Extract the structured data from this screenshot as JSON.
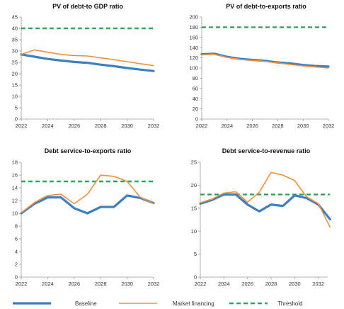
{
  "colors": {
    "baseline": "#3d7fc0",
    "market": "#f0913a",
    "threshold": "#2ea65a",
    "axis": "#9a9a9a"
  },
  "legend": [
    {
      "label": "Baseline",
      "series": "baseline"
    },
    {
      "label": "Market financing",
      "series": "market"
    },
    {
      "label": "Threshold",
      "series": "threshold"
    }
  ],
  "chart_data": [
    {
      "type": "line",
      "title": "PV of debt-to GDP ratio",
      "x": [
        2022,
        2023,
        2024,
        2025,
        2026,
        2027,
        2028,
        2029,
        2030,
        2031,
        2032
      ],
      "xticks": [
        "2022",
        "2024",
        "2026",
        "2028",
        "2030",
        "2032"
      ],
      "ylim": [
        0,
        45
      ],
      "yticks": [
        "0",
        "5",
        "10",
        "15",
        "20",
        "25",
        "30",
        "35",
        "40",
        "45"
      ],
      "series": [
        {
          "key": "baseline",
          "values": [
            28.5,
            27.5,
            26.5,
            25.8,
            25.2,
            24.8,
            24.0,
            23.3,
            22.5,
            21.8,
            21.2
          ]
        },
        {
          "key": "market",
          "values": [
            28.5,
            30.5,
            29.5,
            28.5,
            28.0,
            27.8,
            27.0,
            26.2,
            25.3,
            24.4,
            23.6
          ]
        },
        {
          "key": "threshold",
          "values": [
            40,
            40,
            40,
            40,
            40,
            40,
            40,
            40,
            40,
            40,
            40
          ]
        }
      ]
    },
    {
      "type": "line",
      "title": "PV of debt-to-exports  ratio",
      "x": [
        2022,
        2023,
        2024,
        2025,
        2026,
        2027,
        2028,
        2029,
        2030,
        2031,
        2032
      ],
      "xticks": [
        "2022",
        "2024",
        "2026",
        "2028",
        "2030",
        "2032"
      ],
      "ylim": [
        0,
        200
      ],
      "yticks": [
        "0",
        "20",
        "40",
        "60",
        "80",
        "100",
        "120",
        "140",
        "160",
        "180",
        "200"
      ],
      "series": [
        {
          "key": "baseline",
          "values": [
            127,
            128,
            122,
            118,
            116,
            114,
            111,
            109,
            106,
            104,
            103
          ]
        },
        {
          "key": "market",
          "values": [
            126,
            127,
            121,
            117,
            115,
            113,
            110,
            107,
            104,
            102,
            100
          ]
        },
        {
          "key": "threshold",
          "values": [
            180,
            180,
            180,
            180,
            180,
            180,
            180,
            180,
            180,
            180,
            180
          ]
        }
      ]
    },
    {
      "type": "line",
      "title": "Debt service-to-exports  ratio",
      "x": [
        2022,
        2023,
        2024,
        2025,
        2026,
        2027,
        2028,
        2029,
        2030,
        2031,
        2032
      ],
      "xticks": [
        "2022",
        "2024",
        "2026",
        "2028",
        "2030",
        "2032"
      ],
      "ylim": [
        0,
        18
      ],
      "yticks": [
        "0",
        "2",
        "4",
        "6",
        "8",
        "10",
        "12",
        "14",
        "16",
        "18"
      ],
      "series": [
        {
          "key": "baseline",
          "values": [
            10.0,
            11.5,
            12.5,
            12.5,
            10.8,
            10.0,
            11.0,
            11.0,
            12.8,
            12.4,
            11.6
          ]
        },
        {
          "key": "market",
          "values": [
            10.1,
            11.7,
            12.8,
            13.0,
            11.5,
            13.0,
            16.0,
            15.8,
            15.0,
            12.5,
            11.5
          ]
        },
        {
          "key": "threshold",
          "values": [
            15,
            15,
            15,
            15,
            15,
            15,
            15,
            15,
            15,
            15,
            15
          ]
        }
      ]
    },
    {
      "type": "line",
      "title": "Debt service-to-revenue  ratio",
      "x": [
        2022,
        2023,
        2024,
        2025,
        2026,
        2027,
        2028,
        2029,
        2030,
        2031,
        2032,
        2033
      ],
      "xticks": [
        "2022",
        "2024",
        "2026",
        "2028",
        "2030",
        "2032"
      ],
      "ylim": [
        0,
        25
      ],
      "yticks": [
        "0",
        "5",
        "10",
        "15",
        "20",
        "25"
      ],
      "series": [
        {
          "key": "baseline",
          "values": [
            16.0,
            16.8,
            18.0,
            18.0,
            15.8,
            14.3,
            15.8,
            15.5,
            17.8,
            17.2,
            15.8,
            12.6
          ]
        },
        {
          "key": "market",
          "values": [
            16.2,
            17.0,
            18.3,
            18.6,
            16.3,
            18.5,
            22.8,
            22.2,
            21.0,
            17.5,
            16.0,
            10.9
          ]
        },
        {
          "key": "threshold",
          "values": [
            18,
            18,
            18,
            18,
            18,
            18,
            18,
            18,
            18,
            18,
            18,
            18
          ]
        }
      ]
    }
  ]
}
